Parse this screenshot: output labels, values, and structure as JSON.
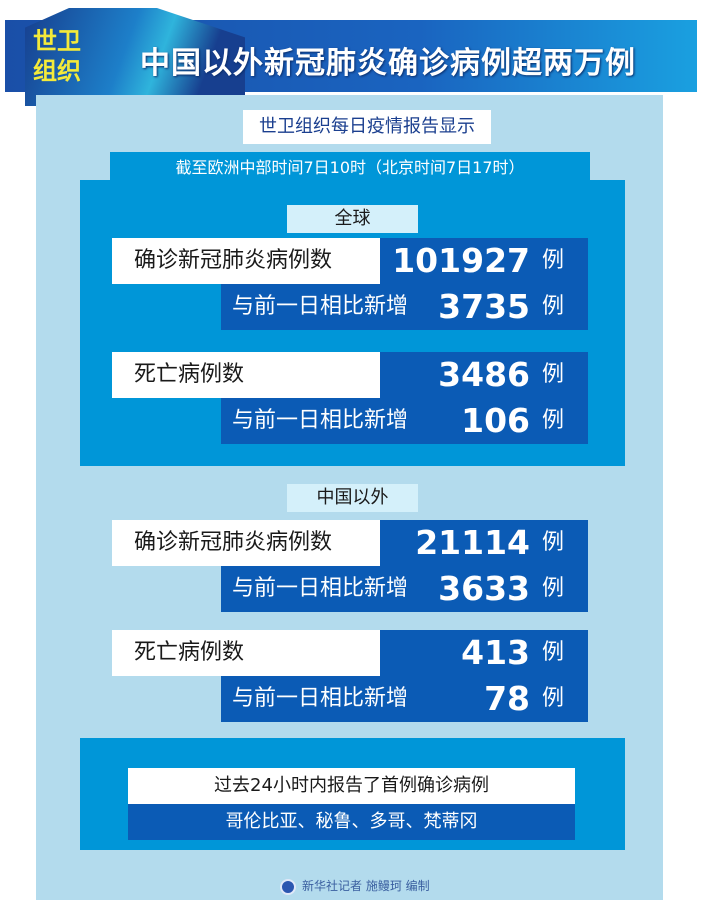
{
  "header": {
    "badge_line1": "世卫",
    "badge_line2": "组织",
    "title": "中国以外新冠肺炎确诊病例超两万例"
  },
  "subtitle": "世卫组织每日疫情报告显示",
  "time_note": "截至欧洲中部时间7日10时（北京时间7日17时）",
  "sections": [
    {
      "label": "全球",
      "confirmed_label": "确诊新冠肺炎病例数",
      "confirmed": "101927",
      "confirmed_new_label": "与前一日相比新增",
      "confirmed_new": "3735",
      "deaths_label": "死亡病例数",
      "deaths": "3486",
      "deaths_new_label": "与前一日相比新增",
      "deaths_new": "106",
      "unit": "例"
    },
    {
      "label": "中国以外",
      "confirmed_label": "确诊新冠肺炎病例数",
      "confirmed": "21114",
      "confirmed_new_label": "与前一日相比新增",
      "confirmed_new": "3633",
      "deaths_label": "死亡病例数",
      "deaths": "413",
      "deaths_new_label": "与前一日相比新增",
      "deaths_new": "78",
      "unit": "例"
    }
  ],
  "first_cases": {
    "title": "过去24小时内报告了首例确诊病例",
    "countries": "哥伦比亚、秘鲁、多哥、梵蒂冈"
  },
  "credit": "新华社记者 施鳗珂 编制",
  "colors": {
    "dark_blue": "#0b5bb5",
    "mid_blue": "#0096d8",
    "light_blue": "#b3dbed",
    "badge_yellow": "#f4ea3a"
  }
}
